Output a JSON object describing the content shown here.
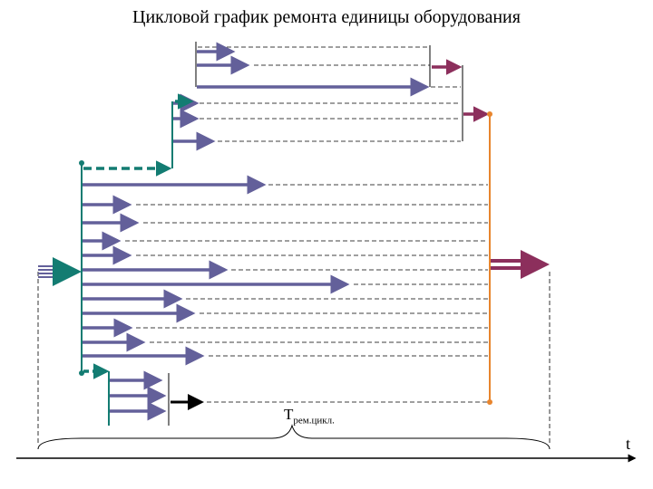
{
  "title": "Цикловой график ремонта единицы оборудования",
  "cycle_time_label": {
    "main": "Т",
    "subscript": "рем.цикл."
  },
  "axis_label": "t",
  "colors": {
    "arrow": "#63609a",
    "teal": "#137c72",
    "crimson": "#8c2f5c",
    "orange": "#e8852d",
    "black": "#000000"
  }
}
